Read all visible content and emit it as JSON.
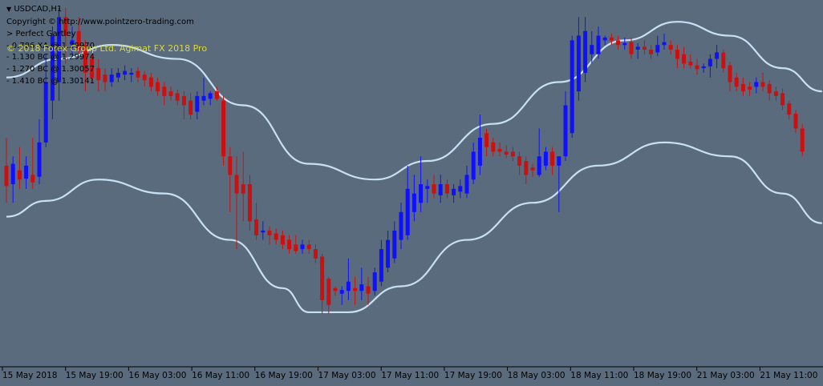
{
  "header": {
    "symbol": "USDCAD,H1",
    "copyright_line": "Copyright © http://www.pointzero-trading.com",
    "pattern_label": "> Perfect Gartley",
    "levels": [
      "- 0.786 XA @ 1.29970",
      "- 1.130 BC @ 1.29974",
      "- 1.270 BC @ 1.30057",
      "- 1.410 BC @ 1.30141"
    ],
    "overlay_copyright": "© 2018 Forex Group Ltd. Agimat FX 2018 Pro",
    "overlay_color": "#d8d840"
  },
  "colors": {
    "background": "#5a6b7d",
    "bull": "#1010ff",
    "bear": "#cc1010",
    "band": "#c8e0f4",
    "axis": "#000000"
  },
  "chart_data": {
    "type": "candlestick",
    "symbol": "USDCAD",
    "timeframe": "H1",
    "x_tick_labels": [
      "15 May 2018",
      "15 May 19:00",
      "16 May 03:00",
      "16 May 11:00",
      "16 May 19:00",
      "17 May 03:00",
      "17 May 11:00",
      "17 May 19:00",
      "18 May 03:00",
      "18 May 11:00",
      "18 May 19:00",
      "21 May 03:00",
      "21 May 11:00"
    ],
    "ylim": [
      1.2655,
      1.3045
    ],
    "candles": [
      {
        "o": 1.287,
        "h": 1.29,
        "l": 1.283,
        "c": 1.2848
      },
      {
        "o": 1.285,
        "h": 1.288,
        "l": 1.283,
        "c": 1.2872
      },
      {
        "o": 1.2865,
        "h": 1.289,
        "l": 1.2845,
        "c": 1.2855
      },
      {
        "o": 1.2856,
        "h": 1.288,
        "l": 1.2845,
        "c": 1.287
      },
      {
        "o": 1.286,
        "h": 1.29,
        "l": 1.2845,
        "c": 1.2852
      },
      {
        "o": 1.2858,
        "h": 1.292,
        "l": 1.285,
        "c": 1.2895
      },
      {
        "o": 1.2895,
        "h": 1.299,
        "l": 1.289,
        "c": 1.296
      },
      {
        "o": 1.294,
        "h": 1.302,
        "l": 1.292,
        "c": 1.301
      },
      {
        "o": 1.296,
        "h": 1.304,
        "l": 1.294,
        "c": 1.303
      },
      {
        "o": 1.303,
        "h": 1.304,
        "l": 1.298,
        "c": 1.301
      },
      {
        "o": 1.3,
        "h": 1.302,
        "l": 1.299,
        "c": 1.3005
      },
      {
        "o": 1.3015,
        "h": 1.303,
        "l": 1.299,
        "c": 1.2995
      },
      {
        "o": 1.3,
        "h": 1.3005,
        "l": 1.295,
        "c": 1.297
      },
      {
        "o": 1.2985,
        "h": 1.299,
        "l": 1.296,
        "c": 1.2965
      },
      {
        "o": 1.2975,
        "h": 1.2985,
        "l": 1.295,
        "c": 1.2962
      },
      {
        "o": 1.2968,
        "h": 1.2975,
        "l": 1.295,
        "c": 1.296
      },
      {
        "o": 1.296,
        "h": 1.2975,
        "l": 1.2955,
        "c": 1.2968
      },
      {
        "o": 1.2965,
        "h": 1.2975,
        "l": 1.296,
        "c": 1.297
      },
      {
        "o": 1.2968,
        "h": 1.2978,
        "l": 1.2962,
        "c": 1.2972
      },
      {
        "o": 1.2968,
        "h": 1.2975,
        "l": 1.296,
        "c": 1.297
      },
      {
        "o": 1.2972,
        "h": 1.2976,
        "l": 1.296,
        "c": 1.2965
      },
      {
        "o": 1.2968,
        "h": 1.2972,
        "l": 1.2955,
        "c": 1.2962
      },
      {
        "o": 1.2965,
        "h": 1.297,
        "l": 1.295,
        "c": 1.2955
      },
      {
        "o": 1.296,
        "h": 1.2965,
        "l": 1.2945,
        "c": 1.295
      },
      {
        "o": 1.2955,
        "h": 1.296,
        "l": 1.2935,
        "c": 1.2945
      },
      {
        "o": 1.295,
        "h": 1.2955,
        "l": 1.294,
        "c": 1.2945
      },
      {
        "o": 1.2948,
        "h": 1.2952,
        "l": 1.2935,
        "c": 1.294
      },
      {
        "o": 1.2945,
        "h": 1.295,
        "l": 1.292,
        "c": 1.2935
      },
      {
        "o": 1.294,
        "h": 1.2948,
        "l": 1.292,
        "c": 1.2925
      },
      {
        "o": 1.2928,
        "h": 1.295,
        "l": 1.292,
        "c": 1.2945
      },
      {
        "o": 1.294,
        "h": 1.2965,
        "l": 1.2935,
        "c": 1.2945
      },
      {
        "o": 1.2942,
        "h": 1.295,
        "l": 1.2935,
        "c": 1.2948
      },
      {
        "o": 1.295,
        "h": 1.2955,
        "l": 1.294,
        "c": 1.2942
      },
      {
        "o": 1.294,
        "h": 1.2945,
        "l": 1.287,
        "c": 1.288
      },
      {
        "o": 1.288,
        "h": 1.289,
        "l": 1.282,
        "c": 1.286
      },
      {
        "o": 1.286,
        "h": 1.288,
        "l": 1.278,
        "c": 1.284
      },
      {
        "o": 1.285,
        "h": 1.2885,
        "l": 1.281,
        "c": 1.284
      },
      {
        "o": 1.285,
        "h": 1.286,
        "l": 1.28,
        "c": 1.281
      },
      {
        "o": 1.2812,
        "h": 1.283,
        "l": 1.279,
        "c": 1.2795
      },
      {
        "o": 1.2798,
        "h": 1.281,
        "l": 1.279,
        "c": 1.28
      },
      {
        "o": 1.28,
        "h": 1.2805,
        "l": 1.2785,
        "c": 1.2795
      },
      {
        "o": 1.2797,
        "h": 1.2802,
        "l": 1.2785,
        "c": 1.279
      },
      {
        "o": 1.2795,
        "h": 1.28,
        "l": 1.278,
        "c": 1.2785
      },
      {
        "o": 1.279,
        "h": 1.2795,
        "l": 1.2775,
        "c": 1.278
      },
      {
        "o": 1.2785,
        "h": 1.2795,
        "l": 1.2775,
        "c": 1.2778
      },
      {
        "o": 1.278,
        "h": 1.279,
        "l": 1.2775,
        "c": 1.2785
      },
      {
        "o": 1.2785,
        "h": 1.279,
        "l": 1.2775,
        "c": 1.278
      },
      {
        "o": 1.278,
        "h": 1.2785,
        "l": 1.2765,
        "c": 1.277
      },
      {
        "o": 1.2772,
        "h": 1.2775,
        "l": 1.271,
        "c": 1.2725
      },
      {
        "o": 1.2748,
        "h": 1.275,
        "l": 1.271,
        "c": 1.272
      },
      {
        "o": 1.2738,
        "h": 1.274,
        "l": 1.273,
        "c": 1.2735
      },
      {
        "o": 1.2732,
        "h": 1.274,
        "l": 1.272,
        "c": 1.2736
      },
      {
        "o": 1.2735,
        "h": 1.277,
        "l": 1.2725,
        "c": 1.2745
      },
      {
        "o": 1.2738,
        "h": 1.275,
        "l": 1.272,
        "c": 1.2735
      },
      {
        "o": 1.2735,
        "h": 1.276,
        "l": 1.2725,
        "c": 1.2742
      },
      {
        "o": 1.274,
        "h": 1.275,
        "l": 1.272,
        "c": 1.2732
      },
      {
        "o": 1.2735,
        "h": 1.276,
        "l": 1.273,
        "c": 1.2755
      },
      {
        "o": 1.2745,
        "h": 1.279,
        "l": 1.274,
        "c": 1.278
      },
      {
        "o": 1.276,
        "h": 1.28,
        "l": 1.2755,
        "c": 1.279
      },
      {
        "o": 1.277,
        "h": 1.281,
        "l": 1.2765,
        "c": 1.28
      },
      {
        "o": 1.279,
        "h": 1.283,
        "l": 1.278,
        "c": 1.282
      },
      {
        "o": 1.2795,
        "h": 1.287,
        "l": 1.279,
        "c": 1.2845
      },
      {
        "o": 1.282,
        "h": 1.286,
        "l": 1.281,
        "c": 1.284
      },
      {
        "o": 1.283,
        "h": 1.288,
        "l": 1.282,
        "c": 1.285
      },
      {
        "o": 1.2845,
        "h": 1.2855,
        "l": 1.283,
        "c": 1.2848
      },
      {
        "o": 1.285,
        "h": 1.286,
        "l": 1.2835,
        "c": 1.284
      },
      {
        "o": 1.2838,
        "h": 1.286,
        "l": 1.283,
        "c": 1.285
      },
      {
        "o": 1.285,
        "h": 1.2855,
        "l": 1.2835,
        "c": 1.284
      },
      {
        "o": 1.2838,
        "h": 1.285,
        "l": 1.283,
        "c": 1.2845
      },
      {
        "o": 1.2842,
        "h": 1.2855,
        "l": 1.2835,
        "c": 1.2848
      },
      {
        "o": 1.284,
        "h": 1.287,
        "l": 1.2835,
        "c": 1.286
      },
      {
        "o": 1.2855,
        "h": 1.2895,
        "l": 1.285,
        "c": 1.2885
      },
      {
        "o": 1.287,
        "h": 1.2925,
        "l": 1.286,
        "c": 1.29
      },
      {
        "o": 1.2905,
        "h": 1.291,
        "l": 1.288,
        "c": 1.289
      },
      {
        "o": 1.2895,
        "h": 1.29,
        "l": 1.288,
        "c": 1.2885
      },
      {
        "o": 1.2888,
        "h": 1.2895,
        "l": 1.288,
        "c": 1.2885
      },
      {
        "o": 1.2885,
        "h": 1.2892,
        "l": 1.2878,
        "c": 1.2882
      },
      {
        "o": 1.2885,
        "h": 1.289,
        "l": 1.2875,
        "c": 1.288
      },
      {
        "o": 1.288,
        "h": 1.2885,
        "l": 1.286,
        "c": 1.287
      },
      {
        "o": 1.2875,
        "h": 1.288,
        "l": 1.285,
        "c": 1.286
      },
      {
        "o": 1.2868,
        "h": 1.2872,
        "l": 1.2858,
        "c": 1.2865
      },
      {
        "o": 1.286,
        "h": 1.291,
        "l": 1.2858,
        "c": 1.288
      },
      {
        "o": 1.287,
        "h": 1.289,
        "l": 1.2865,
        "c": 1.2885
      },
      {
        "o": 1.2885,
        "h": 1.289,
        "l": 1.286,
        "c": 1.287
      },
      {
        "o": 1.287,
        "h": 1.288,
        "l": 1.282,
        "c": 1.288
      },
      {
        "o": 1.288,
        "h": 1.295,
        "l": 1.2875,
        "c": 1.2935
      },
      {
        "o": 1.2905,
        "h": 1.301,
        "l": 1.29,
        "c": 1.3005
      },
      {
        "o": 1.295,
        "h": 1.303,
        "l": 1.294,
        "c": 1.301
      },
      {
        "o": 1.297,
        "h": 1.303,
        "l": 1.296,
        "c": 1.3015
      },
      {
        "o": 1.299,
        "h": 1.3015,
        "l": 1.298,
        "c": 1.3
      },
      {
        "o": 1.299,
        "h": 1.302,
        "l": 1.2985,
        "c": 1.301
      },
      {
        "o": 1.3005,
        "h": 1.301,
        "l": 1.3,
        "c": 1.3008
      },
      {
        "o": 1.3008,
        "h": 1.3012,
        "l": 1.3,
        "c": 1.3005
      },
      {
        "o": 1.3005,
        "h": 1.301,
        "l": 1.2995,
        "c": 1.3
      },
      {
        "o": 1.3,
        "h": 1.3008,
        "l": 1.2995,
        "c": 1.3002
      },
      {
        "o": 1.3003,
        "h": 1.3008,
        "l": 1.2985,
        "c": 1.299
      },
      {
        "o": 1.2995,
        "h": 1.3002,
        "l": 1.2985,
        "c": 1.2998
      },
      {
        "o": 1.2998,
        "h": 1.3005,
        "l": 1.299,
        "c": 1.2995
      },
      {
        "o": 1.2995,
        "h": 1.3,
        "l": 1.2985,
        "c": 1.299
      },
      {
        "o": 1.2992,
        "h": 1.301,
        "l": 1.2988,
        "c": 1.3
      },
      {
        "o": 1.3,
        "h": 1.3012,
        "l": 1.2995,
        "c": 1.3003
      },
      {
        "o": 1.3,
        "h": 1.3005,
        "l": 1.299,
        "c": 1.2995
      },
      {
        "o": 1.2995,
        "h": 1.3,
        "l": 1.2975,
        "c": 1.2985
      },
      {
        "o": 1.299,
        "h": 1.2998,
        "l": 1.2975,
        "c": 1.298
      },
      {
        "o": 1.2982,
        "h": 1.299,
        "l": 1.2975,
        "c": 1.2978
      },
      {
        "o": 1.2978,
        "h": 1.2985,
        "l": 1.2968,
        "c": 1.2974
      },
      {
        "o": 1.2975,
        "h": 1.298,
        "l": 1.297,
        "c": 1.2977
      },
      {
        "o": 1.2977,
        "h": 1.299,
        "l": 1.2965,
        "c": 1.2985
      },
      {
        "o": 1.2985,
        "h": 1.3,
        "l": 1.2975,
        "c": 1.2992
      },
      {
        "o": 1.2992,
        "h": 1.2995,
        "l": 1.297,
        "c": 1.2975
      },
      {
        "o": 1.2978,
        "h": 1.2982,
        "l": 1.295,
        "c": 1.296
      },
      {
        "o": 1.2965,
        "h": 1.297,
        "l": 1.295,
        "c": 1.2955
      },
      {
        "o": 1.2958,
        "h": 1.2965,
        "l": 1.2945,
        "c": 1.295
      },
      {
        "o": 1.2955,
        "h": 1.296,
        "l": 1.2945,
        "c": 1.2952
      },
      {
        "o": 1.2955,
        "h": 1.2965,
        "l": 1.2948,
        "c": 1.296
      },
      {
        "o": 1.296,
        "h": 1.297,
        "l": 1.295,
        "c": 1.2955
      },
      {
        "o": 1.2958,
        "h": 1.2962,
        "l": 1.294,
        "c": 1.2948
      },
      {
        "o": 1.295,
        "h": 1.2955,
        "l": 1.294,
        "c": 1.2945
      },
      {
        "o": 1.2948,
        "h": 1.2953,
        "l": 1.293,
        "c": 1.2935
      },
      {
        "o": 1.2937,
        "h": 1.294,
        "l": 1.292,
        "c": 1.2925
      },
      {
        "o": 1.2926,
        "h": 1.293,
        "l": 1.2905,
        "c": 1.291
      },
      {
        "o": 1.291,
        "h": 1.2915,
        "l": 1.288,
        "c": 1.2885
      }
    ],
    "upper_band": [
      [
        0,
        1.2965
      ],
      [
        8,
        1.2985
      ],
      [
        16,
        1.3
      ],
      [
        26,
        1.2985
      ],
      [
        36,
        1.2935
      ],
      [
        46,
        1.2872
      ],
      [
        56,
        1.2855
      ],
      [
        64,
        1.2875
      ],
      [
        74,
        1.2915
      ],
      [
        84,
        1.296
      ],
      [
        94,
        1.3005
      ],
      [
        102,
        1.3025
      ],
      [
        110,
        1.301
      ],
      [
        118,
        1.2975
      ],
      [
        124,
        1.295
      ]
    ],
    "lower_band": [
      [
        0,
        1.2815
      ],
      [
        6,
        1.2832
      ],
      [
        14,
        1.2855
      ],
      [
        24,
        1.284
      ],
      [
        34,
        1.279
      ],
      [
        42,
        1.2738
      ],
      [
        46,
        1.2712
      ],
      [
        52,
        1.2712
      ],
      [
        60,
        1.274
      ],
      [
        70,
        1.279
      ],
      [
        80,
        1.283
      ],
      [
        90,
        1.287
      ],
      [
        100,
        1.2895
      ],
      [
        110,
        1.288
      ],
      [
        118,
        1.284
      ],
      [
        124,
        1.2808
      ]
    ]
  }
}
